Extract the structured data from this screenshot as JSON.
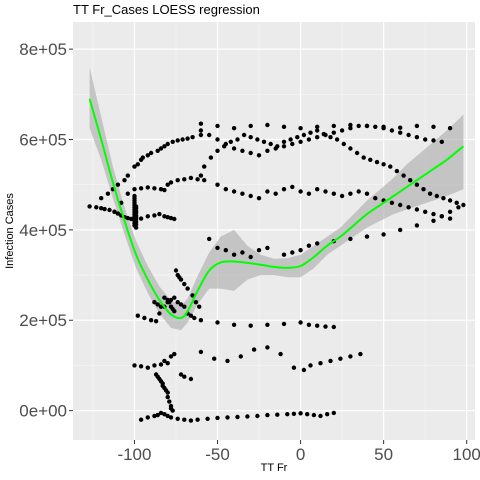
{
  "chart_data": {
    "type": "scatter",
    "title": "TT Fr_Cases LOESS regression",
    "xlabel": "TT Fr",
    "ylabel": "Infection Cases",
    "xlim": [
      -137,
      105
    ],
    "ylim": [
      -65000,
      860000
    ],
    "x_ticks": [
      -100,
      -50,
      0,
      50,
      100
    ],
    "x_tick_labels": [
      "-100",
      "-50",
      "0",
      "50",
      "100"
    ],
    "y_ticks": [
      0,
      200000,
      400000,
      600000,
      800000
    ],
    "y_tick_labels": [
      "0e+00",
      "2e+05",
      "4e+05",
      "6e+05",
      "8e+05"
    ],
    "grid": true,
    "colors": {
      "panel": "#ebebeb",
      "grid": "#ffffff",
      "points": "#000000",
      "fit_line": "#00ff00",
      "confidence_band": "#b3b3b3"
    },
    "series": [
      {
        "kind": "points",
        "x": [
          -127,
          -123,
          -120,
          -118,
          -115,
          -112,
          -110,
          -108,
          -106,
          -104,
          -102,
          -100,
          -96,
          -92,
          -88,
          -85,
          -82,
          -80,
          -78,
          -76,
          -120,
          -116,
          -113,
          -110,
          -106,
          -104,
          -100,
          -98,
          -96,
          -95,
          -92,
          -90,
          -86,
          -84,
          -82,
          -80,
          -77,
          -74,
          -71,
          -68,
          -65,
          -60,
          -112,
          -108,
          -104,
          -100,
          -96,
          -92,
          -88,
          -84,
          -82,
          -80,
          -78,
          -74,
          -70,
          -66,
          -62,
          -58,
          -100,
          -100,
          -100,
          -100,
          -100,
          -100,
          -100,
          -100,
          -100,
          -100,
          -100,
          -100,
          -100,
          -100,
          -99,
          -99,
          -99,
          -99,
          -99,
          -99,
          -99,
          -99,
          -99,
          -99,
          -88,
          -86,
          -84,
          -82,
          -80,
          -79,
          -78,
          -77,
          -76,
          -75,
          -74,
          -73,
          -72,
          -70,
          -68,
          -65,
          -63,
          -61,
          -98,
          -94,
          -90,
          -87,
          -85,
          -82,
          -80,
          -78,
          -76,
          -74,
          -72,
          -70,
          -68,
          -66,
          -64,
          -60,
          -50,
          -40,
          -30,
          -20,
          -10,
          0,
          5,
          10,
          15,
          20,
          -100,
          -96,
          -92,
          -88,
          -84,
          -82,
          -80,
          -78,
          -76,
          -72,
          -70,
          -66,
          -60,
          -52,
          -44,
          -36,
          -28,
          -20,
          -12,
          -4,
          2,
          6,
          12,
          18,
          24,
          30,
          36,
          -87,
          -86,
          -85,
          -84,
          -83,
          -83,
          -82,
          -81,
          -80,
          -80,
          -79,
          -78,
          -78,
          -77,
          -96,
          -92,
          -88,
          -86,
          -84,
          -82,
          -80,
          -78,
          -74,
          -70,
          -66,
          -62,
          -56,
          -50,
          -44,
          -38,
          -32,
          -26,
          -20,
          -14,
          -8,
          -4,
          0,
          4,
          8,
          12,
          16,
          20,
          -60,
          -58,
          -54,
          -50,
          -46,
          -42,
          -38,
          -34,
          -30,
          -26,
          -22,
          -18,
          -14,
          -10,
          -6,
          -2,
          2,
          6,
          10,
          14,
          18,
          22,
          26,
          30,
          34,
          38,
          42,
          46,
          50,
          54,
          58,
          62,
          66,
          70,
          74,
          78,
          82,
          86,
          90,
          94,
          98,
          -50,
          -45,
          -40,
          -35,
          -30,
          -25,
          -20,
          -15,
          -10,
          -5,
          0,
          5,
          10,
          15,
          20,
          25,
          30,
          35,
          40,
          45,
          50,
          55,
          60,
          65,
          70,
          75,
          80,
          85,
          90,
          -60,
          -55,
          -50,
          -45,
          -40,
          -35,
          -30,
          -25,
          -20,
          -15,
          -10,
          -5,
          0,
          5,
          10,
          15,
          20,
          25,
          30,
          35,
          40,
          45,
          50,
          55,
          60,
          65,
          70,
          75,
          80,
          85,
          -55,
          -50,
          -45,
          -40,
          -35,
          -30,
          -25,
          -20,
          -10,
          -5,
          0,
          5,
          10,
          20,
          30,
          40,
          50,
          60,
          70,
          80,
          85,
          90,
          95,
          -60,
          -50,
          -40,
          -30,
          -20,
          -10,
          0,
          10,
          20,
          30,
          40,
          50,
          60,
          70,
          80,
          90
        ],
        "y": [
          452000,
          450000,
          448000,
          446000,
          444000,
          440000,
          436000,
          432000,
          428000,
          426000,
          424000,
          422000,
          425000,
          430000,
          432000,
          435000,
          430000,
          428000,
          426000,
          424000,
          470000,
          480000,
          490000,
          500000,
          510000,
          520000,
          540000,
          545000,
          555000,
          560000,
          565000,
          570000,
          575000,
          580000,
          585000,
          590000,
          595000,
          598000,
          600000,
          602000,
          605000,
          610000,
          440000,
          460000,
          480000,
          490000,
          492000,
          494000,
          492000,
          490000,
          488000,
          500000,
          505000,
          510000,
          512000,
          515000,
          512000,
          510000,
          410000,
          415000,
          420000,
          425000,
          430000,
          435000,
          440000,
          445000,
          450000,
          455000,
          460000,
          465000,
          470000,
          475000,
          405000,
          412000,
          418000,
          424000,
          428000,
          432000,
          438000,
          442000,
          448000,
          452000,
          240000,
          235000,
          230000,
          250000,
          245000,
          240000,
          230000,
          225000,
          220000,
          310000,
          300000,
          295000,
          290000,
          280000,
          270000,
          255000,
          240000,
          230000,
          210000,
          205000,
          200000,
          198000,
          215000,
          230000,
          240000,
          245000,
          250000,
          240000,
          235000,
          230000,
          215000,
          210000,
          205000,
          200000,
          195000,
          190000,
          188000,
          190000,
          192000,
          195000,
          190000,
          188000,
          186000,
          185000,
          100000,
          98000,
          95000,
          100000,
          102000,
          110000,
          105000,
          120000,
          125000,
          80000,
          75000,
          70000,
          130000,
          115000,
          110000,
          120000,
          135000,
          140000,
          125000,
          95000,
          90000,
          100000,
          105000,
          110000,
          115000,
          120000,
          125000,
          80000,
          75000,
          70000,
          65000,
          60000,
          55000,
          50000,
          45000,
          40000,
          30000,
          20000,
          10000,
          5000,
          0,
          -20000,
          -15000,
          -12000,
          -10000,
          -5000,
          -8000,
          -12000,
          -15000,
          -18000,
          -20000,
          -22000,
          -20000,
          -18000,
          -16000,
          -15000,
          -14000,
          -13000,
          -12000,
          -10000,
          -9000,
          -8000,
          -7000,
          -6000,
          -8000,
          -10000,
          -12000,
          -8000,
          -5000,
          520000,
          540000,
          560000,
          575000,
          585000,
          595000,
          600000,
          610000,
          605000,
          600000,
          595000,
          590000,
          585000,
          595000,
          600000,
          605000,
          610000,
          615000,
          620000,
          612000,
          605000,
          600000,
          590000,
          580000,
          570000,
          560000,
          555000,
          550000,
          545000,
          540000,
          530000,
          520000,
          510000,
          500000,
          490000,
          480000,
          475000,
          470000,
          465000,
          460000,
          455000,
          500000,
          490000,
          485000,
          480000,
          475000,
          470000,
          485000,
          480000,
          490000,
          495000,
          485000,
          480000,
          490000,
          485000,
          480000,
          475000,
          480000,
          485000,
          480000,
          470000,
          465000,
          460000,
          455000,
          450000,
          445000,
          440000,
          435000,
          430000,
          425000,
          620000,
          610000,
          600000,
          590000,
          580000,
          575000,
          570000,
          565000,
          575000,
          580000,
          585000,
          590000,
          595000,
          600000,
          605000,
          610000,
          615000,
          620000,
          625000,
          630000,
          630000,
          628000,
          625000,
          620000,
          615000,
          610000,
          605000,
          600000,
          598000,
          595000,
          380000,
          360000,
          355000,
          345000,
          350000,
          340000,
          355000,
          360000,
          345000,
          350000,
          355000,
          365000,
          370000,
          375000,
          380000,
          385000,
          390000,
          400000,
          410000,
          420000,
          430000,
          440000,
          450000,
          635000,
          630000,
          625000,
          630000,
          632000,
          628000,
          625000,
          628000,
          630000,
          632000,
          630000,
          628000,
          626000,
          630000,
          628000,
          625000
        ]
      },
      {
        "kind": "loess_fit",
        "x": [
          -127,
          -120,
          -113,
          -106,
          -99,
          -92,
          -85,
          -78,
          -72,
          -68,
          -62,
          -55,
          -48,
          -40,
          -32,
          -24,
          -16,
          -8,
          0,
          8,
          16,
          24,
          32,
          40,
          48,
          56,
          64,
          72,
          80,
          88,
          98
        ],
        "y": [
          690000,
          600000,
          505000,
          420000,
          345000,
          290000,
          245000,
          213000,
          205000,
          220000,
          265000,
          310000,
          328000,
          330000,
          327000,
          323000,
          318000,
          316000,
          320000,
          340000,
          365000,
          385000,
          410000,
          435000,
          455000,
          475000,
          495000,
          515000,
          535000,
          555000,
          585000
        ],
        "lower": [
          625000,
          555000,
          470000,
          390000,
          315000,
          260000,
          215000,
          183000,
          178000,
          195000,
          235000,
          270000,
          270000,
          265000,
          290000,
          300000,
          300000,
          295000,
          295000,
          315000,
          345000,
          365000,
          385000,
          405000,
          420000,
          435000,
          445000,
          455000,
          465000,
          475000,
          490000
        ],
        "upper": [
          760000,
          650000,
          540000,
          450000,
          375000,
          320000,
          275000,
          243000,
          232000,
          248000,
          298000,
          350000,
          385000,
          400000,
          365000,
          345000,
          336000,
          337000,
          345000,
          365000,
          385000,
          405000,
          435000,
          465000,
          490000,
          515000,
          545000,
          570000,
          595000,
          620000,
          655000
        ]
      }
    ]
  }
}
